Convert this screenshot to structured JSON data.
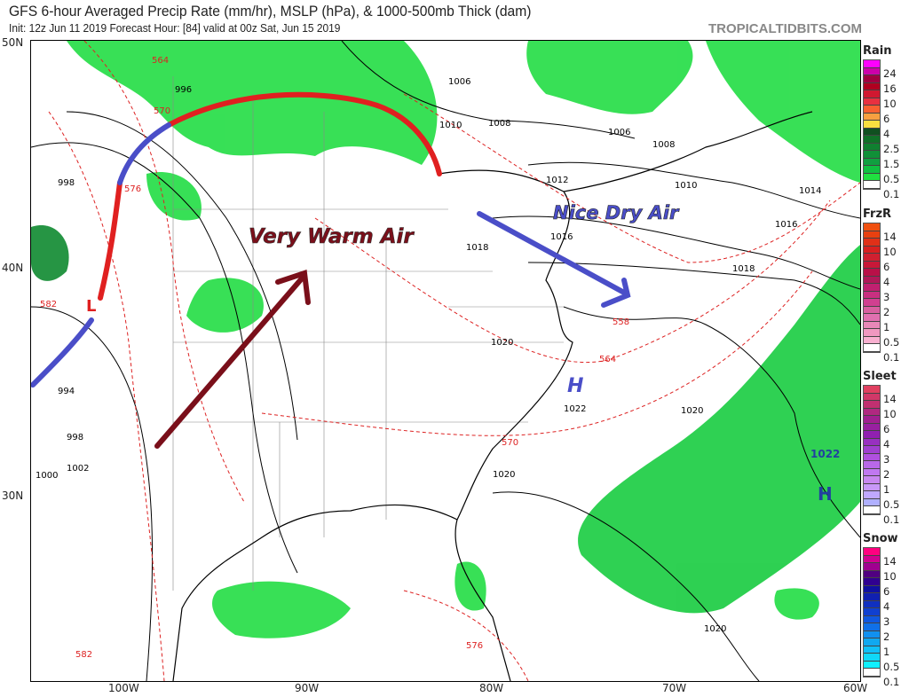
{
  "header": {
    "title": "GFS 6-hour Averaged Precip Rate (mm/hr), MSLP (hPa), & 1000-500mb Thick (dam)",
    "subtitle": "Init: 12z Jun 11 2019   Forecast Hour: [84]   valid at 00z Sat, Jun 15 2019",
    "watermark": "TROPICALTIDBITS.COM"
  },
  "axes": {
    "lat_labels": [
      "50N",
      "40N",
      "30N"
    ],
    "lon_labels": [
      "100W",
      "90W",
      "80W",
      "70W",
      "60W"
    ]
  },
  "annotations": {
    "warm": "Very Warm Air",
    "dry": "Nice Dry Air",
    "high_east": "H",
    "high_atl": "H",
    "high_atl_value": "1022",
    "low_west": "L",
    "warm_color": "#7a0f1a",
    "dry_color": "#4a4ec8",
    "front_warm_color": "#e02020",
    "front_cold_color": "#4a4ec8"
  },
  "isobar_labels": [
    "1006",
    "1010",
    "1008",
    "1006",
    "1008",
    "1012",
    "1010",
    "1014",
    "1016",
    "1016",
    "1018",
    "1018",
    "1020",
    "1020",
    "1020",
    "1022",
    "1020",
    "998",
    "998",
    "994",
    "1000",
    "1002",
    "996"
  ],
  "thickness_labels": [
    "564",
    "570",
    "576",
    "582",
    "558",
    "564",
    "570",
    "576",
    "582"
  ],
  "legend": [
    {
      "title": "Rain",
      "labels": [
        "24",
        "16",
        "10",
        "6",
        "4",
        "2.5",
        "1.5",
        "0.5",
        "0.1"
      ],
      "colors": [
        "#ff00ff",
        "#cc00aa",
        "#a00040",
        "#b00020",
        "#d01830",
        "#e83040",
        "#f86030",
        "#f8a040",
        "#f8e040",
        "#105020",
        "#107028",
        "#108030",
        "#109038",
        "#10a040",
        "#10c040",
        "#20e040",
        "#ffffff"
      ]
    },
    {
      "title": "FrzR",
      "labels": [
        "14",
        "10",
        "6",
        "4",
        "3",
        "2",
        "1",
        "0.5",
        "0.1"
      ],
      "colors": [
        "#f05010",
        "#e84010",
        "#e03018",
        "#d82020",
        "#d02030",
        "#c81838",
        "#b81048",
        "#b01858",
        "#c02070",
        "#c83080",
        "#d04090",
        "#d860a0",
        "#e070b0",
        "#e888b8",
        "#f098c0",
        "#f8b0d0",
        "#ffffff"
      ]
    },
    {
      "title": "Sleet",
      "labels": [
        "14",
        "10",
        "6",
        "4",
        "3",
        "2",
        "1",
        "0.5",
        "0.1"
      ],
      "colors": [
        "#e04060",
        "#d03868",
        "#c03070",
        "#b02880",
        "#a02090",
        "#9820a0",
        "#9020b0",
        "#9830c0",
        "#a040d0",
        "#b050e0",
        "#b868e8",
        "#c078f0",
        "#c888f0",
        "#c898f8",
        "#c0a8ff",
        "#b0b0ff",
        "#ffffff"
      ]
    },
    {
      "title": "Snow",
      "labels": [
        "14",
        "10",
        "6",
        "4",
        "3",
        "2",
        "1",
        "0.5",
        "0.1"
      ],
      "colors": [
        "#ff0080",
        "#d00090",
        "#a00090",
        "#500080",
        "#300090",
        "#1010a0",
        "#1020b0",
        "#1030c0",
        "#1040d0",
        "#1058e0",
        "#1070e8",
        "#1090f0",
        "#10a8f0",
        "#10c0f8",
        "#10d8f8",
        "#10f0ff",
        "#ffffff"
      ]
    }
  ]
}
